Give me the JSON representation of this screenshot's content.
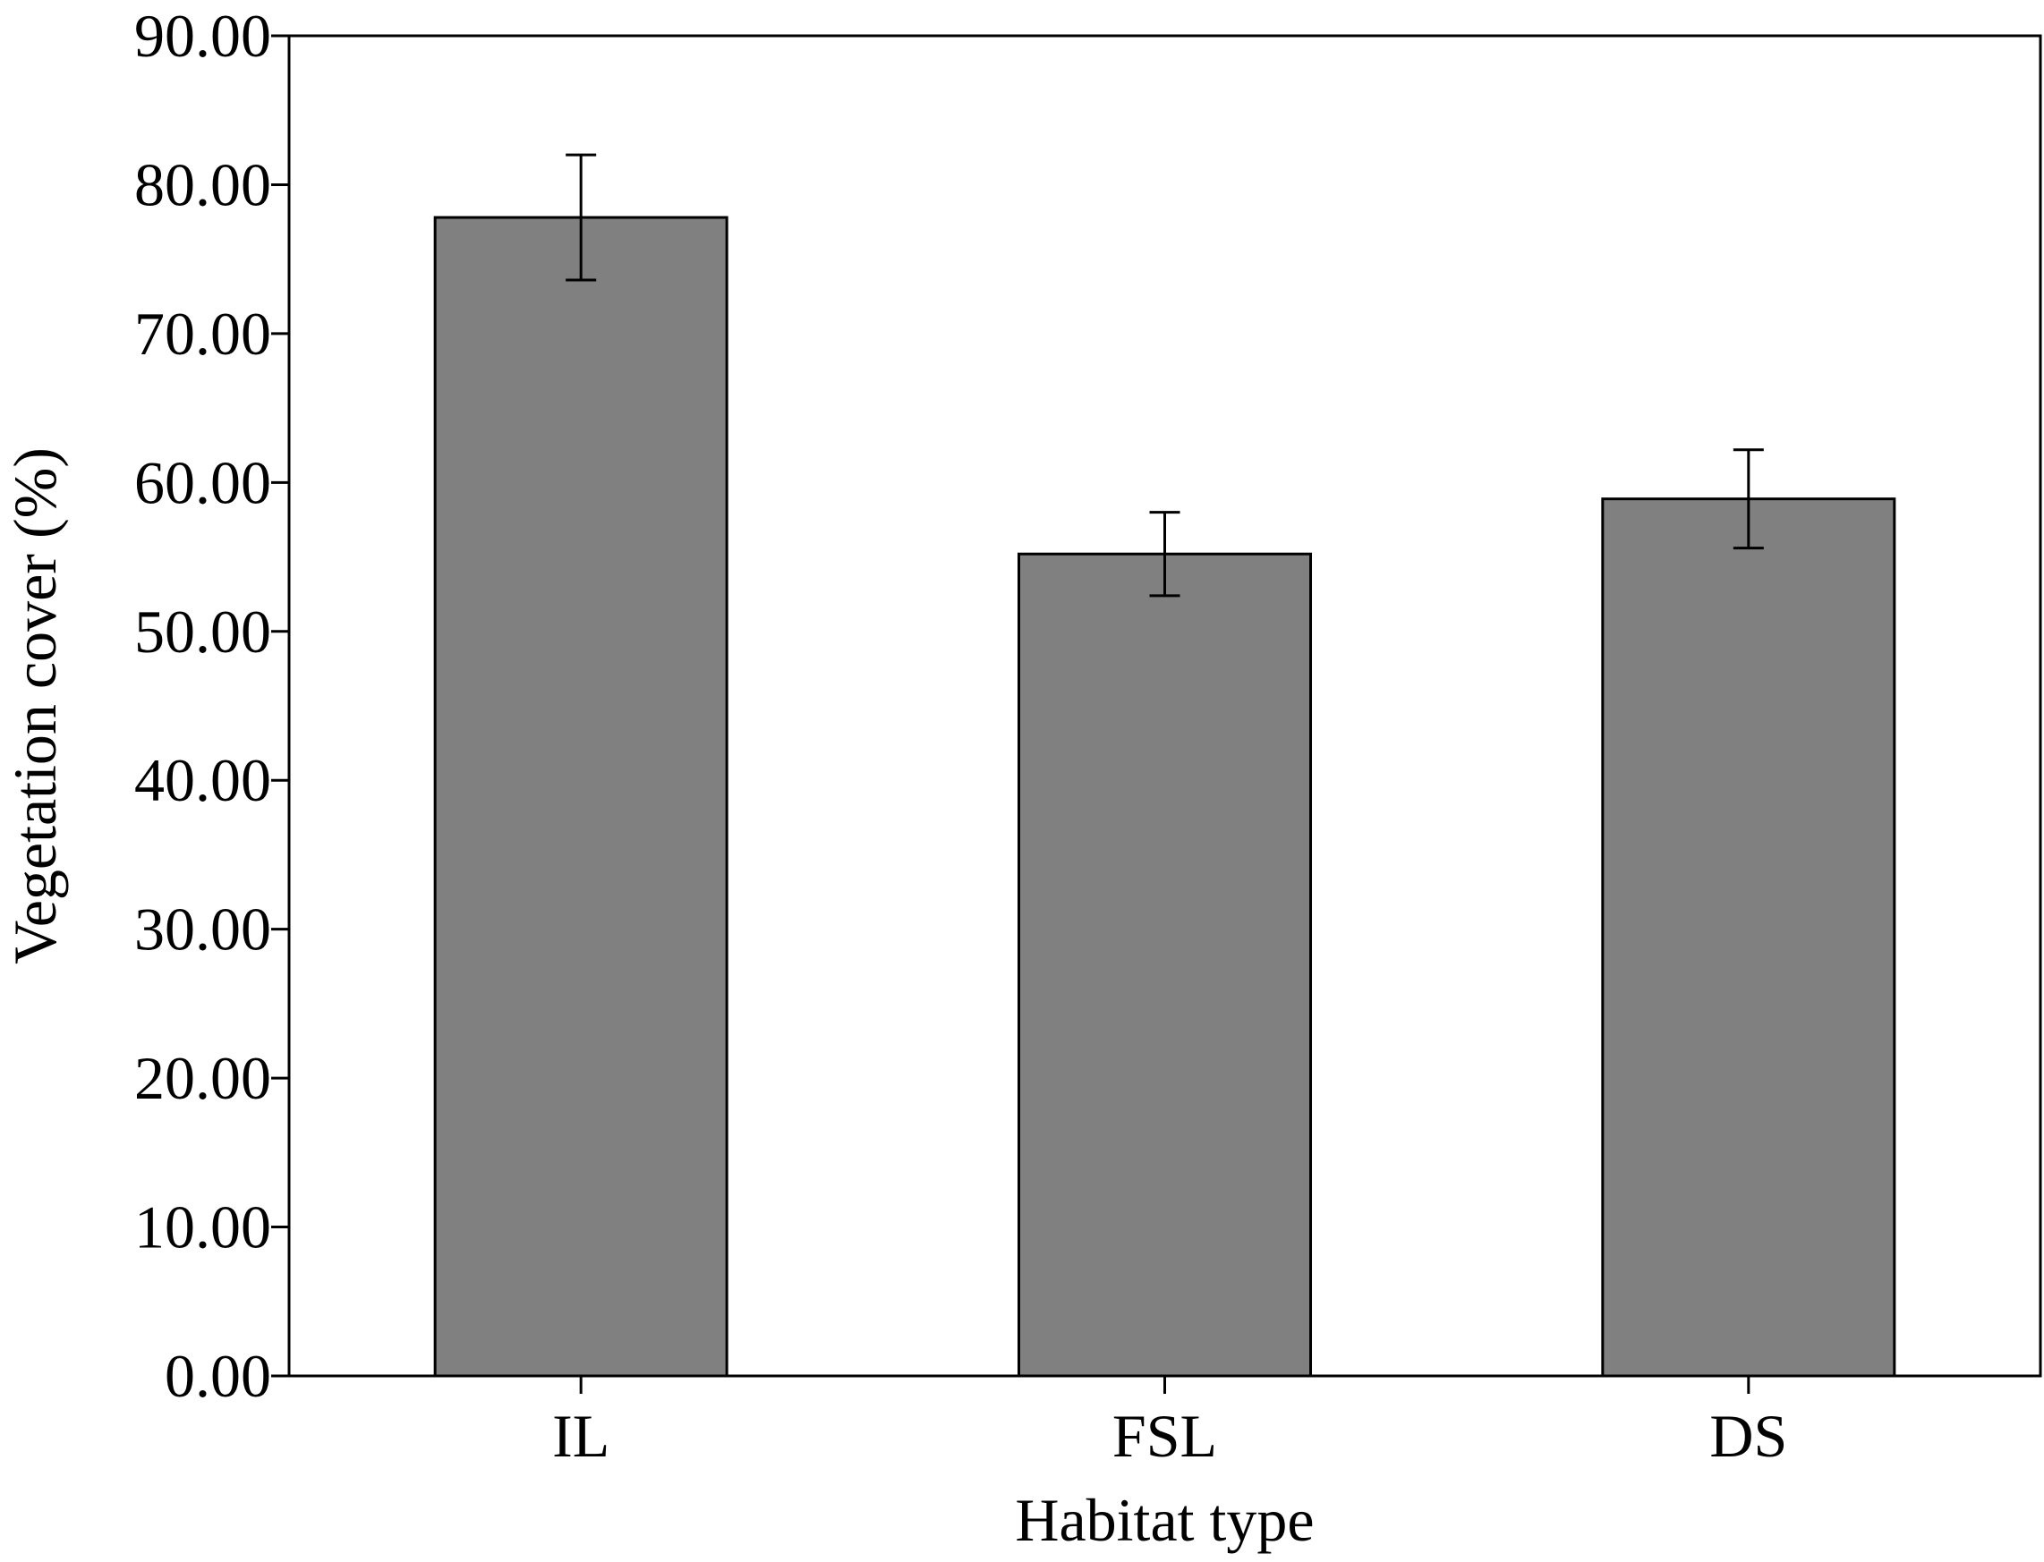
{
  "chart_data": {
    "type": "bar",
    "title": "",
    "xlabel": "Habitat type",
    "ylabel": "Vegetation cover (%)",
    "categories": [
      "IL",
      "FSL",
      "DS"
    ],
    "values": [
      77.8,
      55.2,
      58.9
    ],
    "errors": [
      4.2,
      2.8,
      3.3
    ],
    "ylim": [
      0,
      90
    ],
    "yticks": [
      "0.00",
      "10.00",
      "20.00",
      "30.00",
      "40.00",
      "50.00",
      "60.00",
      "70.00",
      "80.00",
      "90.00"
    ],
    "bar_color": "#808080",
    "grid": false,
    "legend": "none"
  }
}
